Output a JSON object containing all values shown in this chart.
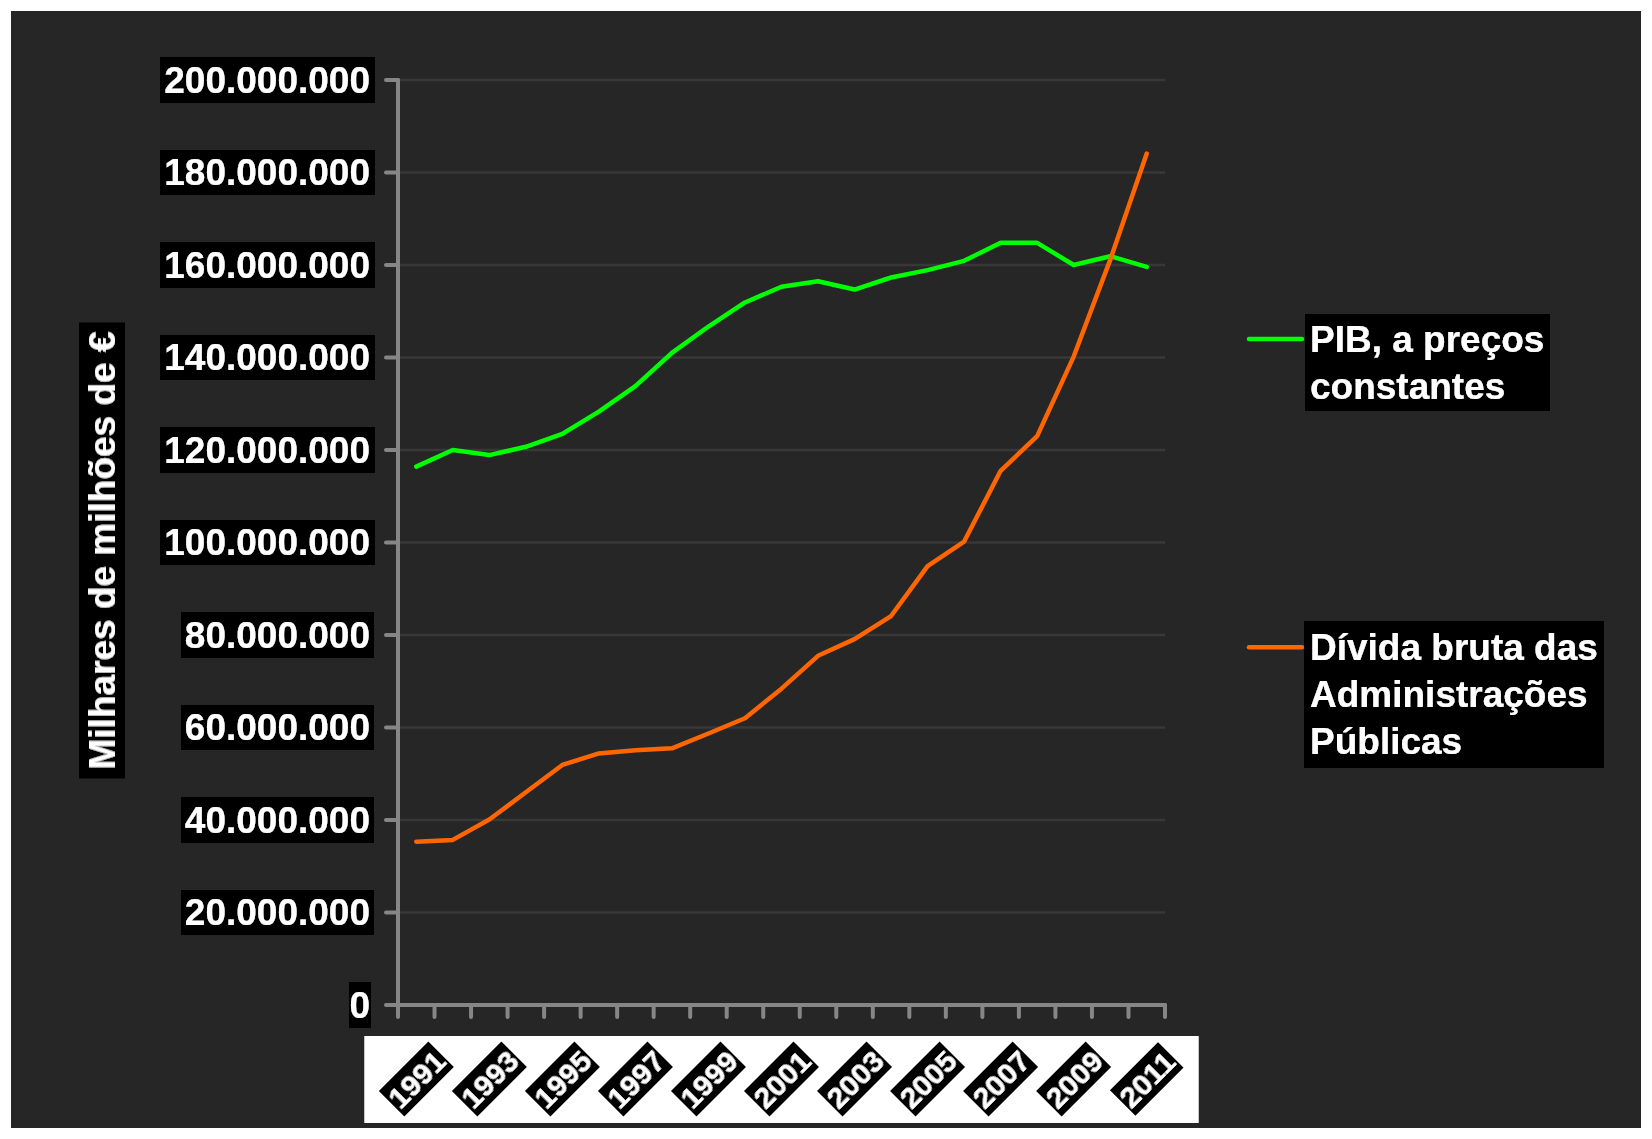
{
  "chart_data": {
    "type": "line",
    "ylabel": "Milhares de milhões de €",
    "categories": [
      "1991",
      null,
      "1993",
      null,
      "1995",
      null,
      "1997",
      null,
      "1999",
      null,
      "2001",
      null,
      "2003",
      null,
      "2005",
      null,
      "2007",
      null,
      "2009",
      null,
      "2011"
    ],
    "series": [
      {
        "name": "PIB, a preços constantes",
        "color": "#00ff00",
        "values": [
          116400000,
          120000000,
          118900000,
          120700000,
          123500000,
          128300000,
          133800000,
          141000000,
          146700000,
          151900000,
          155300000,
          156500000,
          154700000,
          157300000,
          158900000,
          160900000,
          164800000,
          164800000,
          160000000,
          161900000,
          159600000
        ]
      },
      {
        "name": "Dívida bruta das Administrações Públicas",
        "color": "#ff6600",
        "values": [
          35300000,
          35700000,
          40100000,
          46000000,
          51900000,
          54400000,
          55100000,
          55500000,
          58700000,
          62000000,
          68400000,
          75500000,
          79100000,
          84100000,
          94900000,
          100200000,
          115500000,
          123000000,
          140200000,
          161100000,
          184100000
        ]
      }
    ],
    "ylim": [
      0,
      200000000
    ],
    "yticks": [
      0,
      {
        "value": 20000000,
        "label": "20.000.000"
      },
      {
        "value": 40000000,
        "label": "40.000.000"
      },
      {
        "value": 60000000,
        "label": "60.000.000"
      },
      {
        "value": 80000000,
        "label": "80.000.000"
      },
      {
        "value": 100000000,
        "label": "100.000.000"
      },
      {
        "value": 120000000,
        "label": "120.000.000"
      },
      {
        "value": 140000000,
        "label": "140.000.000"
      },
      {
        "value": 160000000,
        "label": "160.000.000"
      },
      {
        "value": 180000000,
        "label": "180.000.000"
      },
      {
        "value": 200000000,
        "label": "200.000.000"
      }
    ],
    "grid": "y",
    "legend": "right"
  }
}
